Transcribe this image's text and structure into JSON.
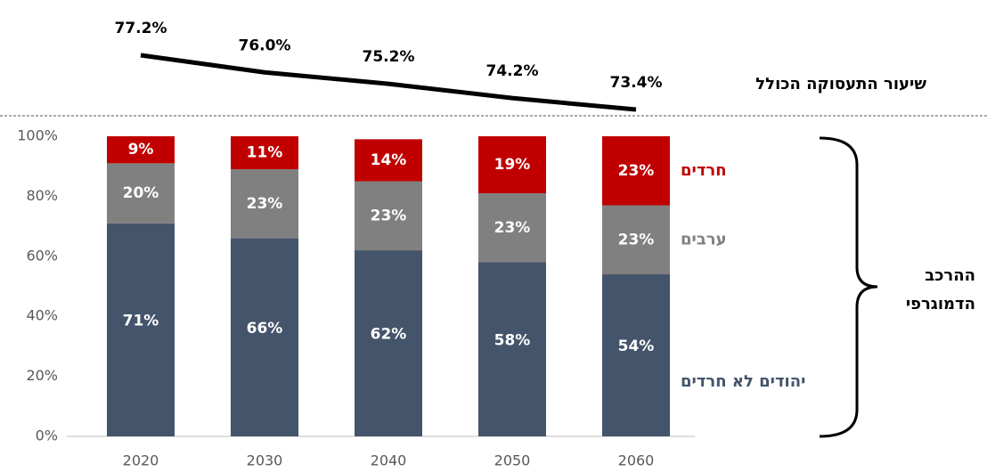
{
  "chart_data": [
    {
      "type": "line",
      "label": "שיעור התעסוקה הכולל",
      "categories": [
        "2020",
        "2030",
        "2040",
        "2050",
        "2060"
      ],
      "values": [
        77.2,
        76.0,
        75.2,
        74.2,
        73.4
      ],
      "value_labels": [
        "77.2%",
        "76.0%",
        "75.2%",
        "74.2%",
        "73.4%"
      ],
      "color": "#000000"
    },
    {
      "type": "stacked_bar",
      "categories": [
        "2020",
        "2030",
        "2040",
        "2050",
        "2060"
      ],
      "series": [
        {
          "name": "יהודים לא חרדים",
          "color": "#44546a",
          "values": [
            71,
            66,
            62,
            58,
            54
          ],
          "value_labels": [
            "71%",
            "66%",
            "62%",
            "58%",
            "54%"
          ]
        },
        {
          "name": "ערבים",
          "color": "#808080",
          "values": [
            20,
            23,
            23,
            23,
            23
          ],
          "value_labels": [
            "20%",
            "23%",
            "23%",
            "23%",
            "23%"
          ]
        },
        {
          "name": "חרדים",
          "color": "#c00000",
          "values": [
            9,
            11,
            14,
            19,
            23
          ],
          "value_labels": [
            "9%",
            "11%",
            "14%",
            "19%",
            "23%"
          ]
        }
      ],
      "ylim": [
        0,
        100
      ],
      "yticks": [
        {
          "value": 0,
          "label": "0%"
        },
        {
          "value": 20,
          "label": "20%"
        },
        {
          "value": 40,
          "label": "40%"
        },
        {
          "value": 60,
          "label": "60%"
        },
        {
          "value": 80,
          "label": "80%"
        },
        {
          "value": 100,
          "label": "100%"
        }
      ],
      "annotation": [
        "ההרכב",
        "הדמוגרפי"
      ]
    }
  ]
}
